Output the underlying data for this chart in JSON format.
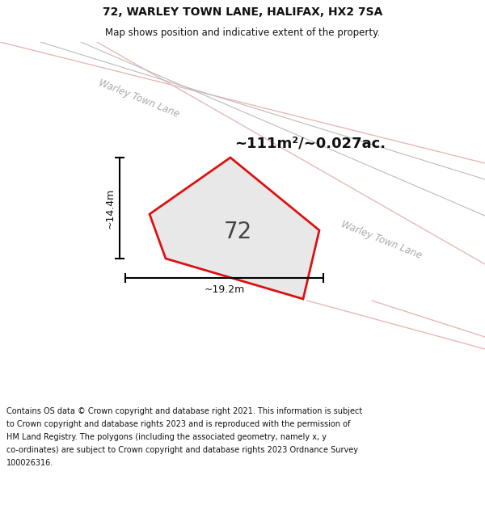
{
  "title": "72, WARLEY TOWN LANE, HALIFAX, HX2 7SA",
  "subtitle": "Map shows position and indicative extent of the property.",
  "area_text": "~111m²/~0.027ac.",
  "property_number": "72",
  "dim_width": "~19.2m",
  "dim_height": "~14.4m",
  "road_label": "Warley Town Lane",
  "footer_lines": [
    "Contains OS data © Crown copyright and database right 2021. This information is subject",
    "to Crown copyright and database rights 2023 and is reproduced with the permission of",
    "HM Land Registry. The polygons (including the associated geometry, namely x, y",
    "co-ordinates) are subject to Crown copyright and database rights 2023 Ordnance Survey",
    "100026316."
  ],
  "bg_color": "#eef2eb",
  "road_fill": "#ffffff",
  "road_outline_color": "#e8b8b8",
  "road_center_line_color": "#cccccc",
  "property_fill": "#e8e8e8",
  "property_edge": "#dd1111",
  "title_color": "#111111",
  "footer_color": "#111111",
  "dim_color": "#111111",
  "road_text_color": "#aaaaaa",
  "area_text_color": "#111111"
}
